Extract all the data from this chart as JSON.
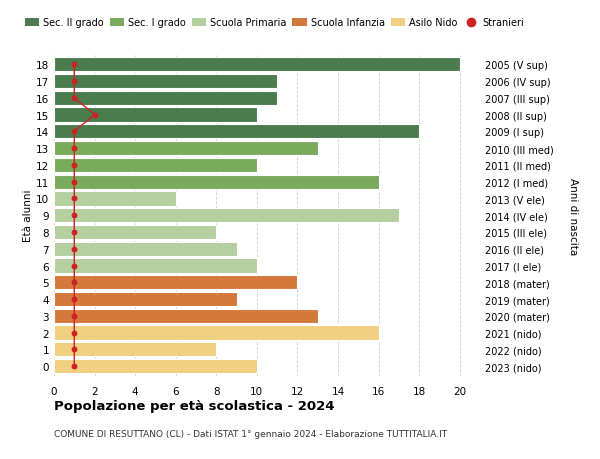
{
  "ages": [
    18,
    17,
    16,
    15,
    14,
    13,
    12,
    11,
    10,
    9,
    8,
    7,
    6,
    5,
    4,
    3,
    2,
    1,
    0
  ],
  "year_labels": [
    "2005 (V sup)",
    "2006 (IV sup)",
    "2007 (III sup)",
    "2008 (II sup)",
    "2009 (I sup)",
    "2010 (III med)",
    "2011 (II med)",
    "2012 (I med)",
    "2013 (V ele)",
    "2014 (IV ele)",
    "2015 (III ele)",
    "2016 (II ele)",
    "2017 (I ele)",
    "2018 (mater)",
    "2019 (mater)",
    "2020 (mater)",
    "2021 (nido)",
    "2022 (nido)",
    "2023 (nido)"
  ],
  "bar_values": [
    20,
    11,
    11,
    10,
    18,
    13,
    10,
    16,
    6,
    17,
    8,
    9,
    10,
    12,
    9,
    13,
    16,
    8,
    10
  ],
  "bar_colors": [
    "#4a7c4e",
    "#4a7c4e",
    "#4a7c4e",
    "#4a7c4e",
    "#4a7c4e",
    "#7aaa5c",
    "#7aaa5c",
    "#7aaa5c",
    "#b5cfa0",
    "#b5cfa0",
    "#b5cfa0",
    "#b5cfa0",
    "#b5cfa0",
    "#d4783c",
    "#d4783c",
    "#d4783c",
    "#f0d080",
    "#f0d080",
    "#f0d080"
  ],
  "stranieri_x": [
    1,
    1,
    1,
    2,
    1,
    1,
    1,
    1,
    1,
    1,
    1,
    1,
    1,
    1,
    1,
    1,
    1,
    1,
    1
  ],
  "stranieri_ages": [
    18,
    17,
    16,
    15,
    14,
    13,
    12,
    11,
    10,
    9,
    8,
    7,
    6,
    5,
    4,
    3,
    2,
    1,
    0
  ],
  "title": "Popolazione per età scolastica - 2024",
  "subtitle": "COMUNE DI RESUTTANO (CL) - Dati ISTAT 1° gennaio 2024 - Elaborazione TUTTITALIA.IT",
  "ylabel_left": "Età alunni",
  "ylabel_right": "Anni di nascita",
  "xlim": [
    0,
    21
  ],
  "xticks": [
    0,
    2,
    4,
    6,
    8,
    10,
    12,
    14,
    16,
    18,
    20
  ],
  "legend_entries": [
    {
      "label": "Sec. II grado",
      "color": "#4a7c4e"
    },
    {
      "label": "Sec. I grado",
      "color": "#7aaa5c"
    },
    {
      "label": "Scuola Primaria",
      "color": "#b5cfa0"
    },
    {
      "label": "Scuola Infanzia",
      "color": "#d4783c"
    },
    {
      "label": "Asilo Nido",
      "color": "#f0d080"
    },
    {
      "label": "Stranieri",
      "color": "#cc2222"
    }
  ],
  "bg_color": "#ffffff",
  "grid_color": "#d0d0d0"
}
